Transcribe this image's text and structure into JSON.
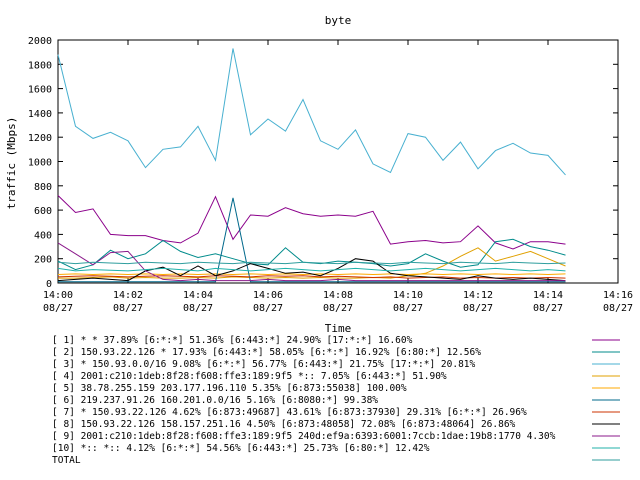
{
  "chart_data": {
    "type": "line",
    "title": "byte",
    "xlabel": "Time",
    "ylabel": "traffic (Mbps)",
    "ylim": [
      0,
      2000
    ],
    "y_ticks": [
      "0",
      "200",
      "400",
      "600",
      "800",
      "1000",
      "1200",
      "1400",
      "1600",
      "1800",
      "2000"
    ],
    "x_ticks": [
      {
        "time": "14:00",
        "date": "08/27"
      },
      {
        "time": "14:02",
        "date": "08/27"
      },
      {
        "time": "14:04",
        "date": "08/27"
      },
      {
        "time": "14:06",
        "date": "08/27"
      },
      {
        "time": "14:08",
        "date": "08/27"
      },
      {
        "time": "14:10",
        "date": "08/27"
      },
      {
        "time": "14:12",
        "date": "08/27"
      },
      {
        "time": "14:14",
        "date": "08/27"
      },
      {
        "time": "14:16",
        "date": "08/27"
      }
    ],
    "xlim_minutes": [
      0,
      16
    ],
    "grid": false,
    "legend_position": "bottom",
    "x": [
      0,
      0.5,
      1,
      1.5,
      2,
      2.5,
      3,
      3.5,
      4,
      4.5,
      5,
      5.5,
      6,
      6.5,
      7,
      7.5,
      8,
      8.5,
      9,
      9.5,
      10,
      10.5,
      11,
      11.5,
      12,
      12.5,
      13,
      13.5,
      14,
      14.5
    ],
    "series": [
      {
        "name": "[ 1] * * 37.89%  [6:*:*] 51.36% [6:443:*] 24.90% [17:*:*] 16.60%",
        "color": "#8b008b",
        "values": [
          720,
          580,
          610,
          400,
          390,
          390,
          350,
          330,
          410,
          710,
          360,
          560,
          550,
          620,
          570,
          550,
          560,
          550,
          590,
          320,
          340,
          350,
          330,
          340,
          470,
          330,
          280,
          340,
          340,
          320
        ]
      },
      {
        "name": "[ 2] 150.93.22.126 * 17.93%  [6:443:*] 58.05% [6:*:*] 16.92% [6:80:*] 12.56%",
        "color": "#008b8b",
        "values": [
          180,
          110,
          150,
          270,
          200,
          240,
          350,
          260,
          210,
          240,
          200,
          160,
          150,
          290,
          170,
          160,
          180,
          170,
          160,
          140,
          160,
          240,
          180,
          130,
          150,
          340,
          360,
          300,
          270,
          230
        ]
      },
      {
        "name": "[ 3] * 150.93.0.0/16 9.08%  [6:*:*] 56.77% [6:443:*] 21.75% [17:*:*] 20.81%",
        "color": "#48b0d0",
        "values": [
          1880,
          1290,
          1190,
          1240,
          1170,
          950,
          1100,
          1120,
          1290,
          1010,
          1930,
          1220,
          1350,
          1250,
          1510,
          1170,
          1100,
          1260,
          980,
          910,
          1230,
          1200,
          1010,
          1160,
          940,
          1090,
          1150,
          1070,
          1050,
          890
        ]
      },
      {
        "name": "[ 4] 2001:c210:1deb:8f28:f608:ffe3:189:9f5 *:: 7.05%  [6:443:*] 51.90%",
        "color": "#e0a000",
        "values": [
          40,
          40,
          45,
          50,
          40,
          45,
          40,
          40,
          45,
          40,
          50,
          45,
          40,
          45,
          40,
          45,
          40,
          40,
          45,
          40,
          60,
          80,
          140,
          220,
          290,
          180,
          220,
          260,
          200,
          140
        ]
      },
      {
        "name": "[ 5] 38.78.255.159 203.177.196.110 5.35%  [6:873:55038] 100.00%",
        "color": "#ffaa00",
        "values": [
          70,
          75,
          70,
          75,
          70,
          75,
          70,
          75,
          70,
          75,
          70,
          75,
          70,
          75,
          70,
          75,
          70,
          75,
          70,
          75,
          70,
          75,
          70,
          75,
          70,
          75,
          70,
          75,
          70,
          75
        ]
      },
      {
        "name": "[ 6] 219.237.91.26 160.201.0.0/16 5.16%  [6:8080:*] 99.38%",
        "color": "#00688b",
        "values": [
          10,
          10,
          10,
          10,
          10,
          10,
          10,
          10,
          10,
          10,
          700,
          10,
          10,
          10,
          10,
          10,
          10,
          10,
          10,
          10,
          10,
          10,
          10,
          10,
          10,
          10,
          10,
          10,
          10,
          10
        ]
      },
      {
        "name": "[ 7] * 150.93.22.126 4.62%  [6:873:49687] 43.61% [6:873:37930] 29.31% [6:*:*] 26.96%",
        "color": "#cc3300",
        "values": [
          50,
          55,
          60,
          55,
          50,
          55,
          60,
          55,
          50,
          60,
          55,
          50,
          60,
          55,
          60,
          50,
          55,
          50,
          45,
          50,
          40,
          45,
          50,
          40,
          45,
          40,
          45,
          40,
          45,
          40
        ]
      },
      {
        "name": "[ 8] 150.93.22.126 158.157.251.16 4.50%  [6:873:48058] 72.08% [6:873:48064] 26.86%",
        "color": "#000000",
        "values": [
          20,
          30,
          40,
          30,
          20,
          100,
          130,
          60,
          140,
          60,
          100,
          160,
          120,
          80,
          90,
          60,
          120,
          200,
          180,
          80,
          60,
          50,
          40,
          30,
          60,
          40,
          30,
          40,
          30,
          20
        ]
      },
      {
        "name": "[ 9] 2001:c210:1deb:8f28:f608:ffe3:189:9f5 240d:ef9a:6393:6001:7ccb:1dae:19b8:1770 4.30%",
        "color": "#8b1a8b",
        "values": [
          330,
          240,
          150,
          250,
          260,
          100,
          30,
          20,
          30,
          20,
          20,
          20,
          30,
          20,
          20,
          20,
          30,
          20,
          20,
          20,
          20,
          20,
          20,
          20,
          20,
          20,
          20,
          20,
          20,
          20
        ]
      },
      {
        "name": "[10] *:: *:: 4.12%  [6:*:*] 54.56% [6:443:*] 25.73% [6:80:*] 12.42%",
        "color": "#20b2aa",
        "values": [
          120,
          100,
          110,
          105,
          100,
          110,
          120,
          110,
          100,
          120,
          110,
          100,
          110,
          120,
          110,
          100,
          110,
          120,
          110,
          100,
          110,
          120,
          110,
          100,
          110,
          120,
          110,
          100,
          110,
          100
        ]
      },
      {
        "name": "TOTAL",
        "color": "#2f9e9e",
        "values": [
          170,
          160,
          170,
          165,
          160,
          170,
          165,
          160,
          170,
          165,
          160,
          170,
          165,
          160,
          170,
          165,
          160,
          170,
          165,
          160,
          170,
          165,
          160,
          170,
          165,
          160,
          170,
          165,
          160,
          165
        ]
      }
    ]
  }
}
